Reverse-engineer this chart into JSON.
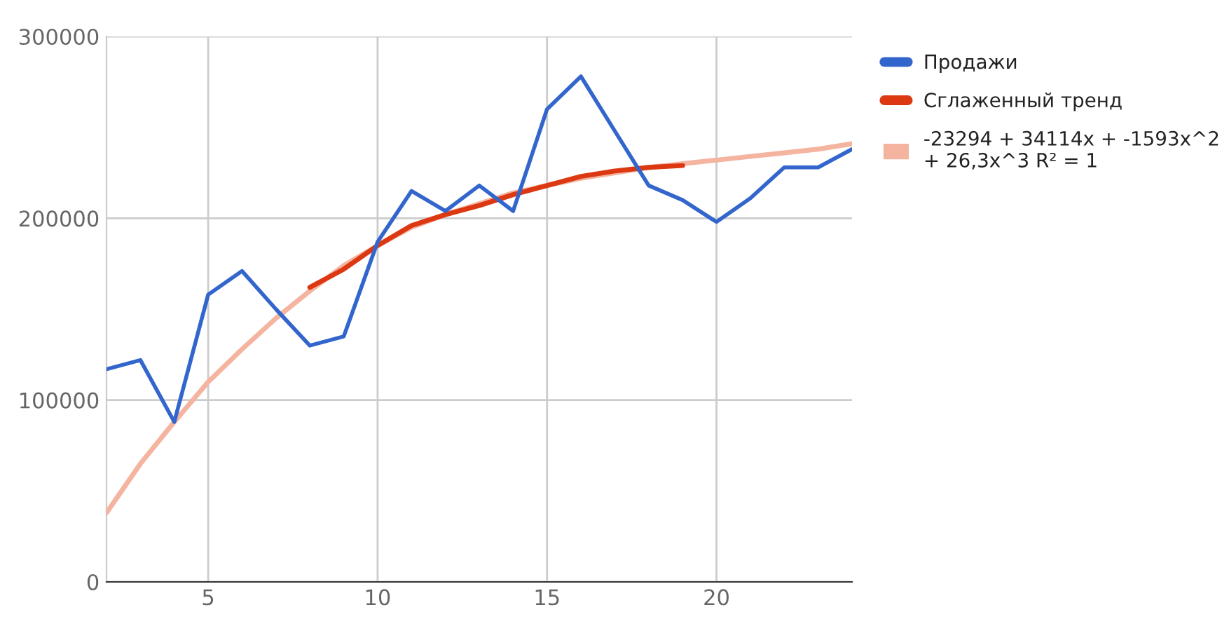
{
  "chart_data": {
    "type": "line",
    "x": [
      2,
      3,
      4,
      5,
      6,
      7,
      8,
      9,
      10,
      11,
      12,
      13,
      14,
      15,
      16,
      17,
      18,
      19,
      20,
      21,
      22,
      23,
      24
    ],
    "series": [
      {
        "name": "Продажи",
        "color": "#3366cc",
        "values": [
          117000,
          122000,
          88000,
          158000,
          171000,
          150000,
          130000,
          135000,
          187000,
          215000,
          204000,
          218000,
          204000,
          260000,
          278000,
          248000,
          218000,
          210000,
          198000,
          211000,
          228000,
          228000,
          238000
        ]
      },
      {
        "name": "Сглаженный тренд",
        "color": "#dc3912",
        "x": [
          8,
          9,
          10,
          11,
          12,
          13,
          14,
          15,
          16,
          17,
          18,
          19
        ],
        "values": [
          162000,
          172000,
          185000,
          196000,
          202000,
          207000,
          213000,
          218000,
          223000,
          226000,
          228000,
          229000
        ]
      },
      {
        "name": "-23294 + 34114x + -1593x^2 + 26,3x^3 R² = 1",
        "color": "#f4b4a0",
        "values": [
          38000,
          65000,
          88000,
          110000,
          128000,
          145000,
          160000,
          174000,
          185000,
          195000,
          202000,
          208000,
          214000,
          218000,
          222000,
          225000,
          228000,
          230000,
          232000,
          234000,
          236000,
          238000,
          241000
        ]
      }
    ],
    "xlim": [
      2,
      24
    ],
    "xticks": [
      5,
      10,
      15,
      20
    ],
    "ylim": [
      0,
      300000
    ],
    "yticks": [
      0,
      100000,
      200000,
      300000
    ],
    "grid": true,
    "legend": "right",
    "marker": "none",
    "line_style": "solid"
  }
}
